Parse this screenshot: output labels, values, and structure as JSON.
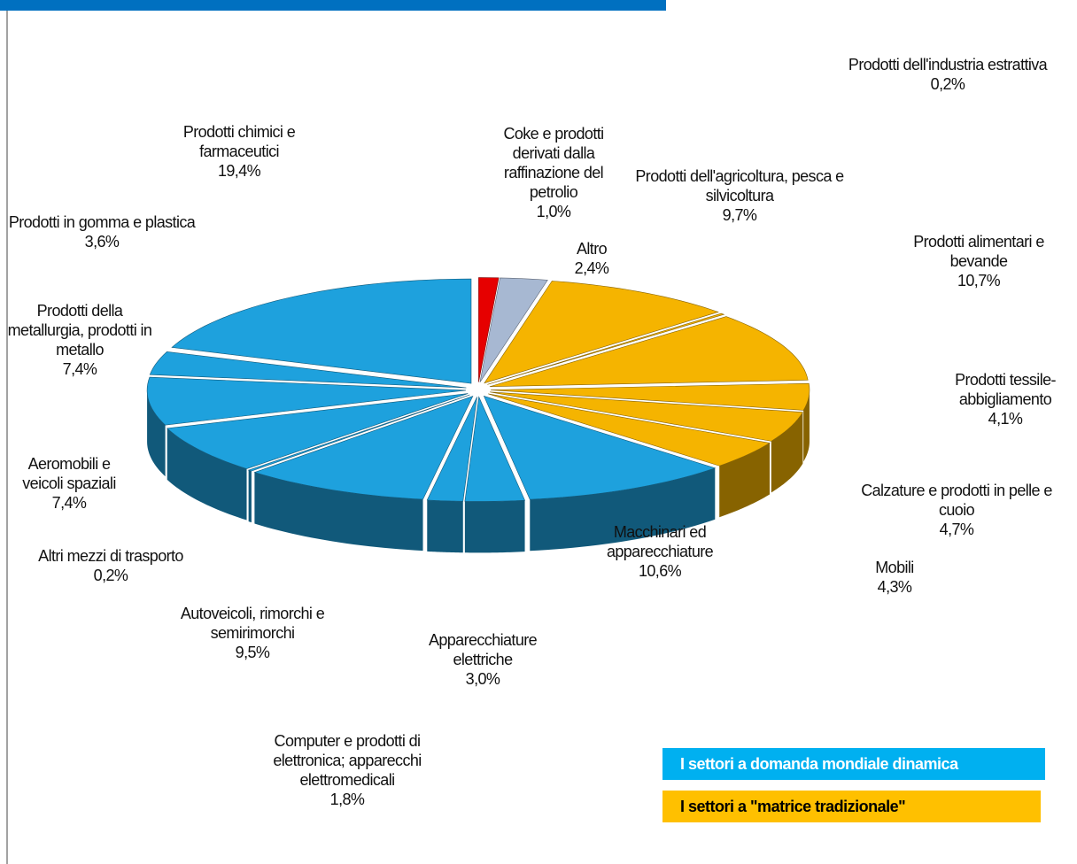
{
  "chart_data": {
    "type": "pie3d",
    "categories": [
      "Coke e prodotti derivati dalla raffinazione del petrolio",
      "Altro",
      "Prodotti dell'agricoltura, pesca e silvicoltura",
      "Prodotti dell'industria estrattiva",
      "Prodotti alimentari e bevande",
      "Prodotti tessile-abbigliamento",
      "Calzature e prodotti in pelle e cuoio",
      "Mobili",
      "Macchinari ed apparecchiature",
      "Apparecchiature elettriche",
      "Computer e prodotti di elettronica; apparecchi elettromedicali",
      "Autoveicoli, rimorchi e semirimorchi",
      "Altri mezzi di trasporto",
      "Aeromobili e veicoli spaziali",
      "Prodotti della metallurgia, prodotti in metallo",
      "Prodotti in gomma e plastica",
      "Prodotti chimici e farmaceutici"
    ],
    "values": [
      1.0,
      2.4,
      9.7,
      0.2,
      10.7,
      4.1,
      4.7,
      4.3,
      10.6,
      3.0,
      1.8,
      9.5,
      0.2,
      7.4,
      7.4,
      3.6,
      19.4
    ],
    "value_labels": [
      "1,0%",
      "2,4%",
      "9,7%",
      "0,2%",
      "10,7%",
      "4,1%",
      "4,7%",
      "4,3%",
      "10,6%",
      "3,0%",
      "1,8%",
      "9,5%",
      "0,2%",
      "7,4%",
      "7,4%",
      "3,6%",
      "19,4%"
    ],
    "colors": [
      "#e60000",
      "#a7b8d2",
      "#f5b400",
      "#f5b400",
      "#f5b400",
      "#f5b400",
      "#f5b400",
      "#f5b400",
      "#1ea1dd",
      "#1ea1dd",
      "#1ea1dd",
      "#1ea1dd",
      "#1ea1dd",
      "#1ea1dd",
      "#1ea1dd",
      "#1ea1dd",
      "#1ea1dd"
    ],
    "legend": [
      {
        "label": "I settori a domanda mondiale  dinamica",
        "color": "#00b0f0"
      },
      {
        "label": "I settori a \"matrice tradizionale\"",
        "color": "#ffc000"
      }
    ]
  }
}
